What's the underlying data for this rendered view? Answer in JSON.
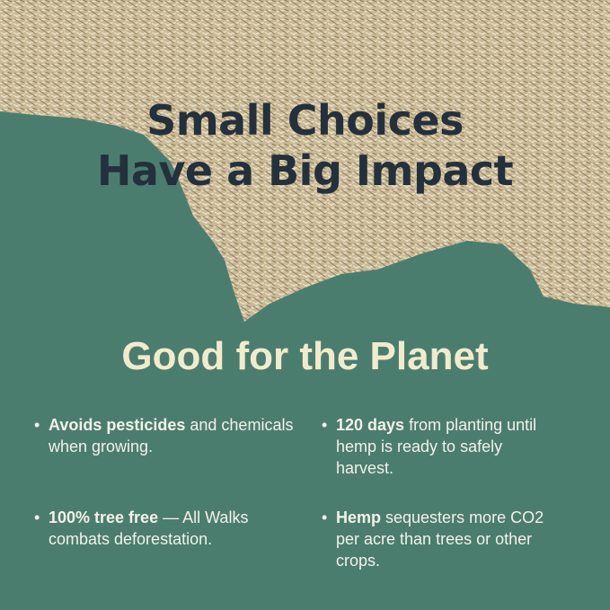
{
  "title_lines": [
    "Small Choices",
    "Have a Big Impact"
  ],
  "subtitle": "Good for the Planet",
  "bullets": [
    {
      "bold": "Avoids pesticides",
      "text": " and chemicals when growing."
    },
    {
      "bold": "120 days",
      "text": " from planting until hemp is ready to safely harvest."
    },
    {
      "bold": "100% tree free",
      "text": " — All Walks combats deforestation."
    },
    {
      "bold": "Hemp",
      "text": " sequesters more CO2 per acre than trees or other crops."
    }
  ],
  "colors": {
    "background": "#4b7d6f",
    "title": "#24303c",
    "subtitle": "#f1ebcd",
    "hemp": "#cbbd9c"
  }
}
